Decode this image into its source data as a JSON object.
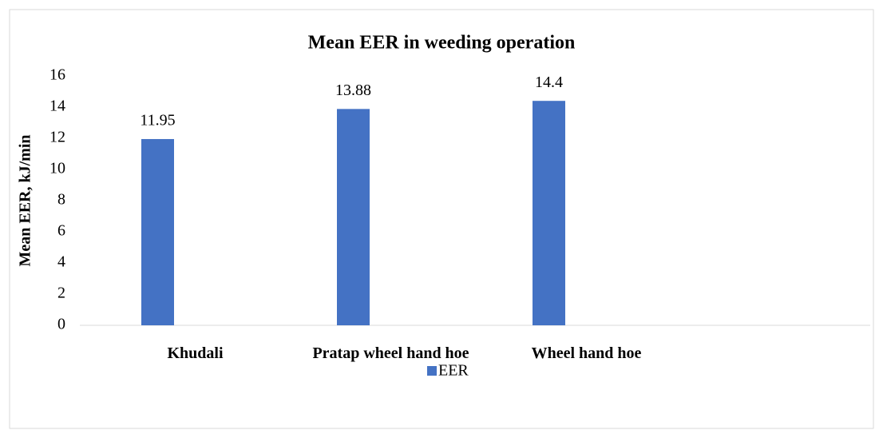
{
  "chart_data": {
    "type": "bar",
    "title": "Mean EER in weeding operation",
    "y_label": "Mean EER, kJ/min",
    "categories": [
      "Khudali",
      "Pratap wheel hand hoe",
      "Wheel hand hoe",
      null
    ],
    "series": [
      {
        "name": "EER",
        "color": "#4472c4",
        "values": [
          11.95,
          13.88,
          14.4,
          null
        ]
      }
    ],
    "ylim": [
      0,
      16
    ],
    "yticks": [
      0,
      2,
      4,
      6,
      8,
      10,
      12,
      14,
      16
    ],
    "grid": false,
    "legend": "bottom",
    "data_labels": true
  }
}
